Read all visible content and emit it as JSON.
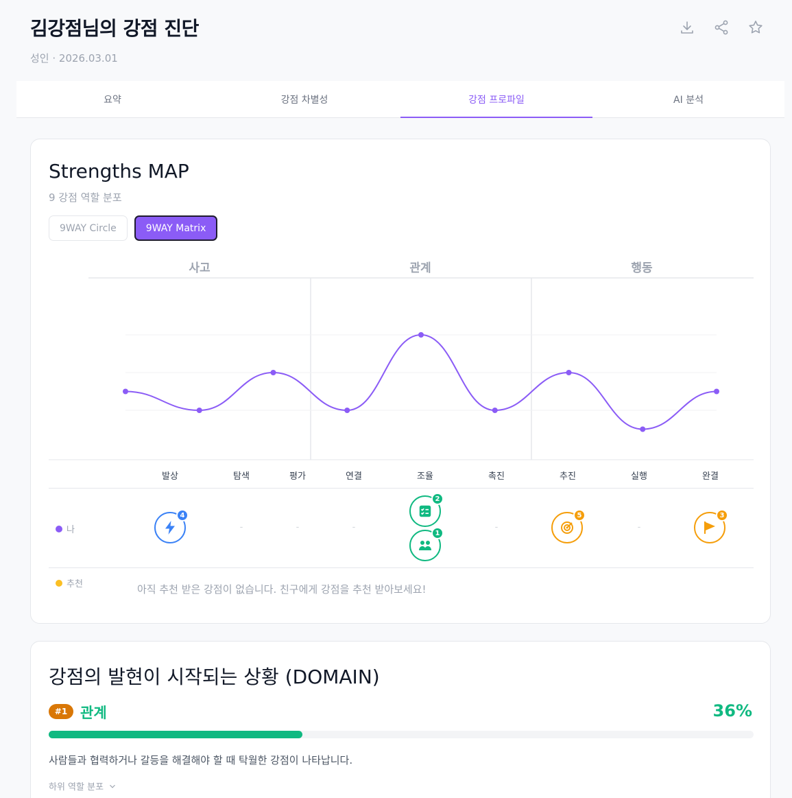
{
  "header": {
    "title": "김강점님의 강점 진단",
    "subtitle": "성인 · 2026.03.01",
    "actions": [
      "download-icon",
      "share-icon",
      "star-icon"
    ]
  },
  "tabs": [
    {
      "label": "요약",
      "active": false
    },
    {
      "label": "강점 차별성",
      "active": false
    },
    {
      "label": "강점 프로파일",
      "active": true
    },
    {
      "label": "AI 분석",
      "active": false
    }
  ],
  "map": {
    "title": "Strengths MAP",
    "subtitle": "9 강점 역할 분포",
    "toggle_circle": "9WAY Circle",
    "toggle_matrix": "9WAY Matrix",
    "domains": [
      "사고",
      "관계",
      "행동"
    ],
    "legend_me": "나",
    "legend_rec": "추천",
    "rec_empty": "아직 추천 받은 강점이 없습니다. 친구에게 강점을 추천 받아보세요!",
    "me_badges": [
      {
        "role": "발상",
        "icon": "lightning-icon",
        "count": "4",
        "color": "#3b82f6"
      },
      {
        "role": "조율",
        "icon": "checklist-icon",
        "count": "2",
        "color": "#10b981"
      },
      {
        "role": "조율",
        "icon": "people-icon",
        "count": "1",
        "color": "#10b981"
      },
      {
        "role": "추진",
        "icon": "target-icon",
        "count": "5",
        "color": "#f59e0b"
      },
      {
        "role": "완결",
        "icon": "flag-icon",
        "count": "3",
        "color": "#f59e0b"
      }
    ],
    "dash": "-"
  },
  "chart_data": {
    "type": "line",
    "categories": [
      "발상",
      "탐색",
      "평가",
      "연결",
      "조율",
      "촉진",
      "추진",
      "실행",
      "완결"
    ],
    "groups": [
      {
        "name": "사고",
        "categories": [
          "발상",
          "탐색",
          "평가"
        ]
      },
      {
        "name": "관계",
        "categories": [
          "연결",
          "조율",
          "촉진"
        ]
      },
      {
        "name": "행동",
        "categories": [
          "추진",
          "실행",
          "완결"
        ]
      }
    ],
    "values": [
      3,
      2,
      4,
      2,
      6,
      2,
      4,
      1,
      3
    ],
    "ylim": [
      0,
      8
    ],
    "grid": true,
    "color": "#8b5cf6"
  },
  "domain": {
    "title": "강점의 발현이 시작되는 상황 (DOMAIN)",
    "rank": "#1",
    "name": "관계",
    "percent_label": "36%",
    "percent": 36,
    "description": "사람들과 협력하거나 갈등을 해결해야 할 때 탁월한 강점이 나타납니다.",
    "sub_label": "하위 역할 분포"
  }
}
